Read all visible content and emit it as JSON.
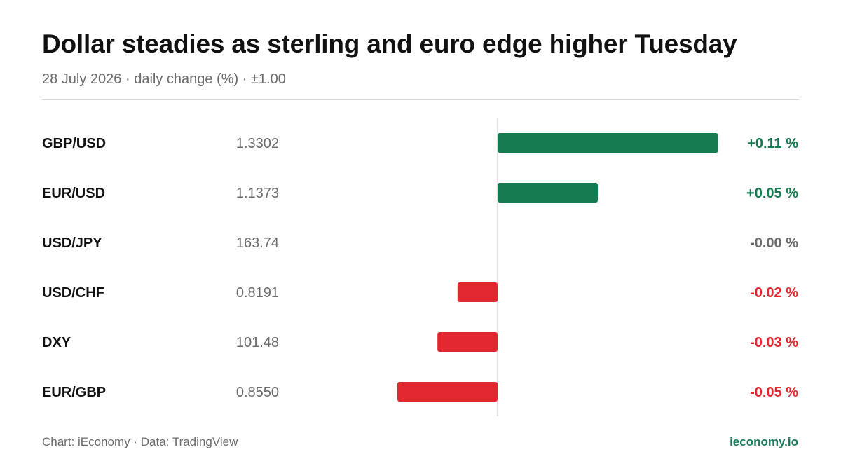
{
  "header": {
    "title": "Dollar steadies as sterling and euro edge higher Tuesday",
    "subtitle": "28 July 2026 · daily change (%) · ±1.00"
  },
  "footer": {
    "source": "Chart: iEconomy · Data: TradingView",
    "brand": "ieconomy.io"
  },
  "colors": {
    "positive": "#157a4f",
    "negative": "#e0282e",
    "neutral": "#6b6b6b",
    "axis": "#d9d9d9"
  },
  "chart_data": {
    "type": "bar",
    "orientation": "horizontal",
    "title": "Dollar steadies as sterling and euro edge higher Tuesday",
    "subtitle": "28 July 2026 · daily change (%) · ±1.00",
    "xlim": [
      -1.0,
      1.0
    ],
    "grid": false,
    "categories": [
      "GBP/USD",
      "EUR/USD",
      "USD/JPY",
      "USD/CHF",
      "DXY",
      "EUR/GBP"
    ],
    "prices": [
      "1.3302",
      "1.1373",
      "163.74",
      "0.8191",
      "101.48",
      "0.8550"
    ],
    "values": [
      0.11,
      0.05,
      0.0,
      -0.02,
      -0.03,
      -0.05
    ],
    "labels": [
      "+0.11 %",
      "+0.05 %",
      "-0.00 %",
      "-0.02 %",
      "-0.03 %",
      "-0.05 %"
    ]
  }
}
